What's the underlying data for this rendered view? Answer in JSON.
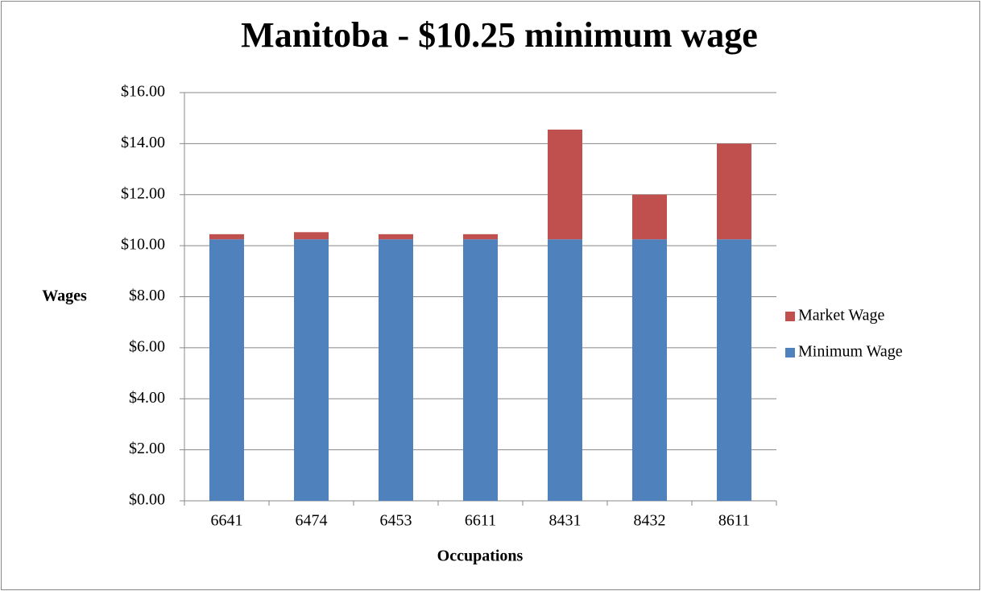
{
  "chart_data": {
    "type": "stacked_bar",
    "title": "Manitoba - $10.25 minimum wage",
    "x_label": "Occupations",
    "y_label": "Wages",
    "categories": [
      "6641",
      "6474",
      "6453",
      "6611",
      "8431",
      "8432",
      "8611"
    ],
    "series": [
      {
        "name": "Minimum Wage",
        "color": "#4f81bd",
        "values": [
          10.25,
          10.25,
          10.25,
          10.25,
          10.25,
          10.25,
          10.25
        ]
      },
      {
        "name": "Market Wage",
        "color": "#c0504d",
        "values": [
          0.2,
          0.28,
          0.2,
          0.2,
          4.3,
          1.75,
          3.75
        ]
      }
    ],
    "ylim": [
      0,
      16
    ],
    "yticks": [
      {
        "value": 0,
        "label": "$0.00"
      },
      {
        "value": 2,
        "label": "$2.00"
      },
      {
        "value": 4,
        "label": "$4.00"
      },
      {
        "value": 6,
        "label": "$6.00"
      },
      {
        "value": 8,
        "label": "$8.00"
      },
      {
        "value": 10,
        "label": "$10.00"
      },
      {
        "value": 12,
        "label": "$12.00"
      },
      {
        "value": 14,
        "label": "$14.00"
      },
      {
        "value": 16,
        "label": "$16.00"
      }
    ],
    "grid": true,
    "legend": "right"
  }
}
